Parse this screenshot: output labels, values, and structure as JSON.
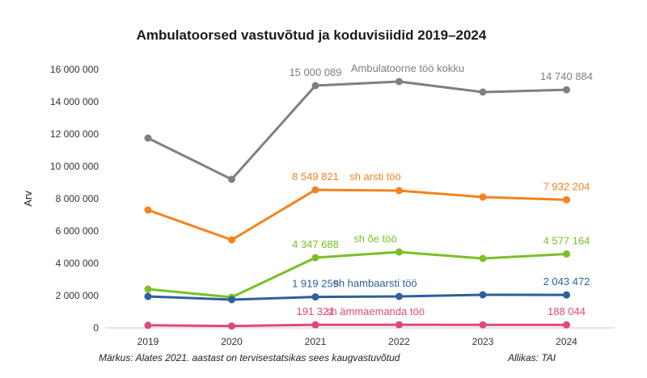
{
  "chart_data": {
    "type": "line",
    "title": "Ambulatoorsed vastuvõtud ja koduvisiidid 2019–2024",
    "ylabel": "Arv",
    "xlabel": "",
    "ylim": [
      0,
      16000000
    ],
    "grid": false,
    "yticks": [
      "0",
      "2 000 000",
      "4 000 000",
      "6 000 000",
      "8 000 000",
      "10 000 000",
      "12 000 000",
      "14 000 000",
      "16 000 000"
    ],
    "categories": [
      "2019",
      "2020",
      "2021",
      "2022",
      "2023",
      "2024"
    ],
    "series": [
      {
        "name": "Ambulatoorne töö kokku",
        "color": "#808080",
        "values": [
          11750000,
          9200000,
          15000089,
          15250000,
          14600000,
          14740884
        ],
        "labels": [
          null,
          null,
          "15 000  089",
          null,
          null,
          "14 740 884"
        ]
      },
      {
        "name": "sh arsti töö",
        "color": "#f5821f",
        "values": [
          7300000,
          5450000,
          8549821,
          8500000,
          8100000,
          7932204
        ],
        "labels": [
          null,
          null,
          "8 549 821",
          null,
          null,
          "7 932 204"
        ]
      },
      {
        "name": "sh õe töö",
        "color": "#7ac025",
        "values": [
          2400000,
          1900000,
          4347688,
          4700000,
          4300000,
          4577164
        ],
        "labels": [
          null,
          null,
          "4 347 688",
          null,
          null,
          "4 577 164"
        ]
      },
      {
        "name": "sh hambaarsti töö",
        "color": "#2e5f9e",
        "values": [
          1950000,
          1750000,
          1919259,
          1950000,
          2050000,
          2043472
        ],
        "labels": [
          null,
          null,
          "1 919 259",
          null,
          null,
          "2 043 472"
        ]
      },
      {
        "name": "sh ämmaemanda töö",
        "color": "#e0487a",
        "values": [
          160000,
          120000,
          191321,
          195000,
          190000,
          188044
        ],
        "labels": [
          null,
          null,
          "191 321",
          null,
          null,
          "188 044"
        ]
      }
    ],
    "footnote": "Märkus: Alates 2021. aastast on tervisestatsikas sees kaugvastuvõtud",
    "source": "Allikas: TAI"
  }
}
